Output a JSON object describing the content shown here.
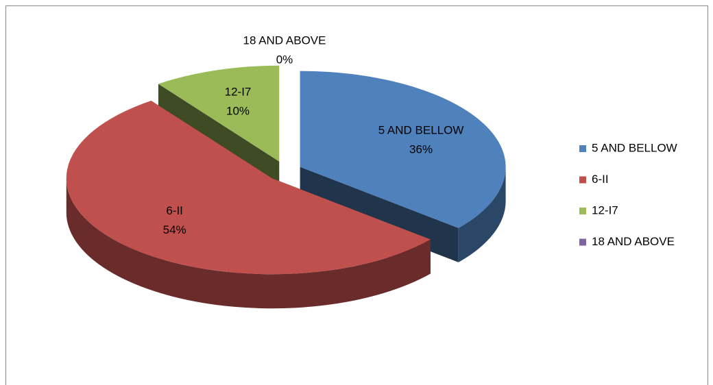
{
  "chart_data": {
    "type": "pie",
    "categories": [
      "5 AND BELLOW",
      "6-II",
      "12-I7",
      "18 AND ABOVE"
    ],
    "values": [
      36,
      54,
      10,
      0
    ],
    "value_labels": [
      "36%",
      "54%",
      "10%",
      "0%"
    ],
    "colors": [
      "#4f81bd",
      "#c0504d",
      "#9bbb59",
      "#8064a2"
    ],
    "legend": "right"
  }
}
